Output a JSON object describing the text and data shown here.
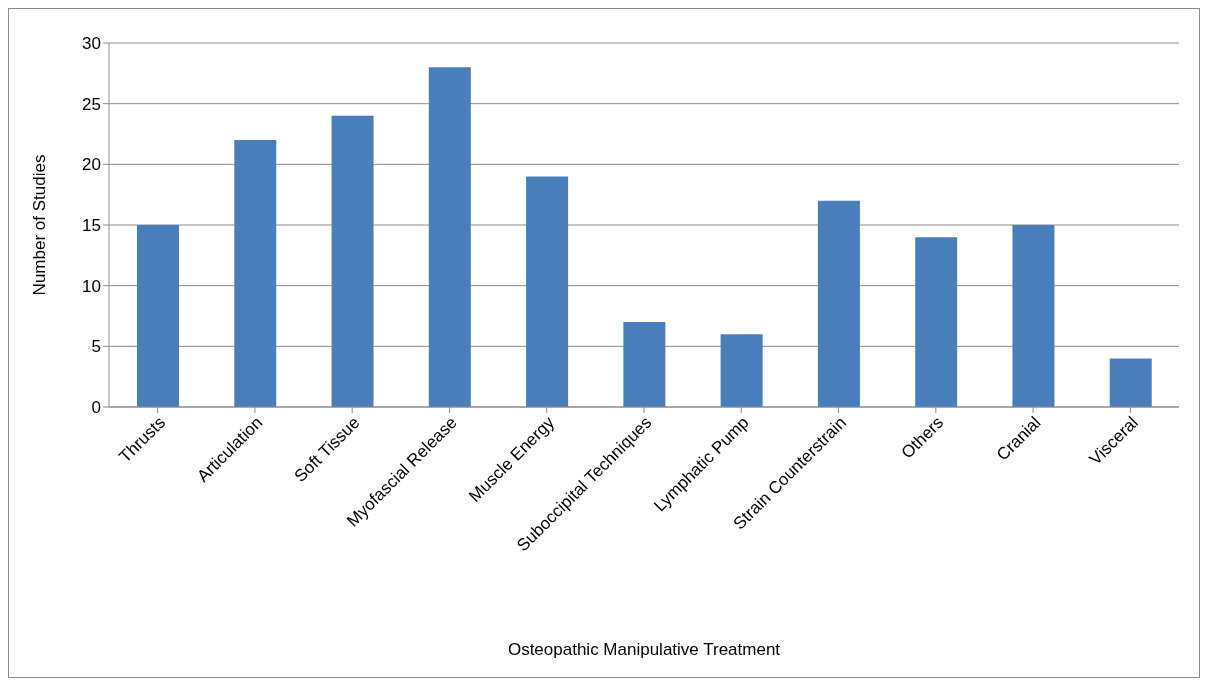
{
  "chart_data": {
    "type": "bar",
    "xlabel": "Osteopathic Manipulative Treatment",
    "ylabel": "Number of Studies",
    "categories": [
      "Thrusts",
      "Articulation",
      "Soft Tissue",
      "Myofascial Release",
      "Muscle Energy",
      "Suboccipital Techniques",
      "Lymphatic Pump",
      "Strain Counterstrain",
      "Others",
      "Cranial",
      "Visceral"
    ],
    "values": [
      15,
      22,
      24,
      28,
      19,
      7,
      6,
      17,
      14,
      15,
      4
    ],
    "color": "#4a7ebb",
    "ylim": [
      0,
      30
    ],
    "yticks": [
      0,
      5,
      10,
      15,
      20,
      25,
      30
    ],
    "grid": "y",
    "legend": false
  }
}
